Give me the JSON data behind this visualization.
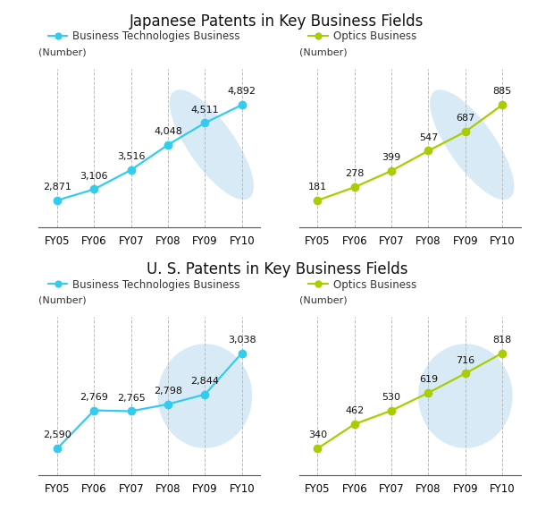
{
  "title_top": "Japanese Patents in Key Business Fields",
  "title_bottom": "U. S. Patents in Key Business Fields",
  "categories": [
    "FY05",
    "FY06",
    "FY07",
    "FY08",
    "FY09",
    "FY10"
  ],
  "jp_biz": [
    2871,
    3106,
    3516,
    4048,
    4511,
    4892
  ],
  "jp_optics": [
    181,
    278,
    399,
    547,
    687,
    885
  ],
  "us_biz": [
    2590,
    2769,
    2765,
    2798,
    2844,
    3038
  ],
  "us_optics": [
    340,
    462,
    530,
    619,
    716,
    818
  ],
  "biz_color": "#33CCEE",
  "optics_color": "#AACC00",
  "legend_biz": "Business Technologies Business",
  "legend_optics": "Optics Business",
  "ylabel": "(Number)",
  "bg_color": "#FFFFFF",
  "map_color": "#D8EAF5",
  "title_fontsize": 12,
  "label_fontsize": 8,
  "tick_fontsize": 8.5,
  "legend_fontsize": 8.5,
  "annotation_fontsize": 8
}
